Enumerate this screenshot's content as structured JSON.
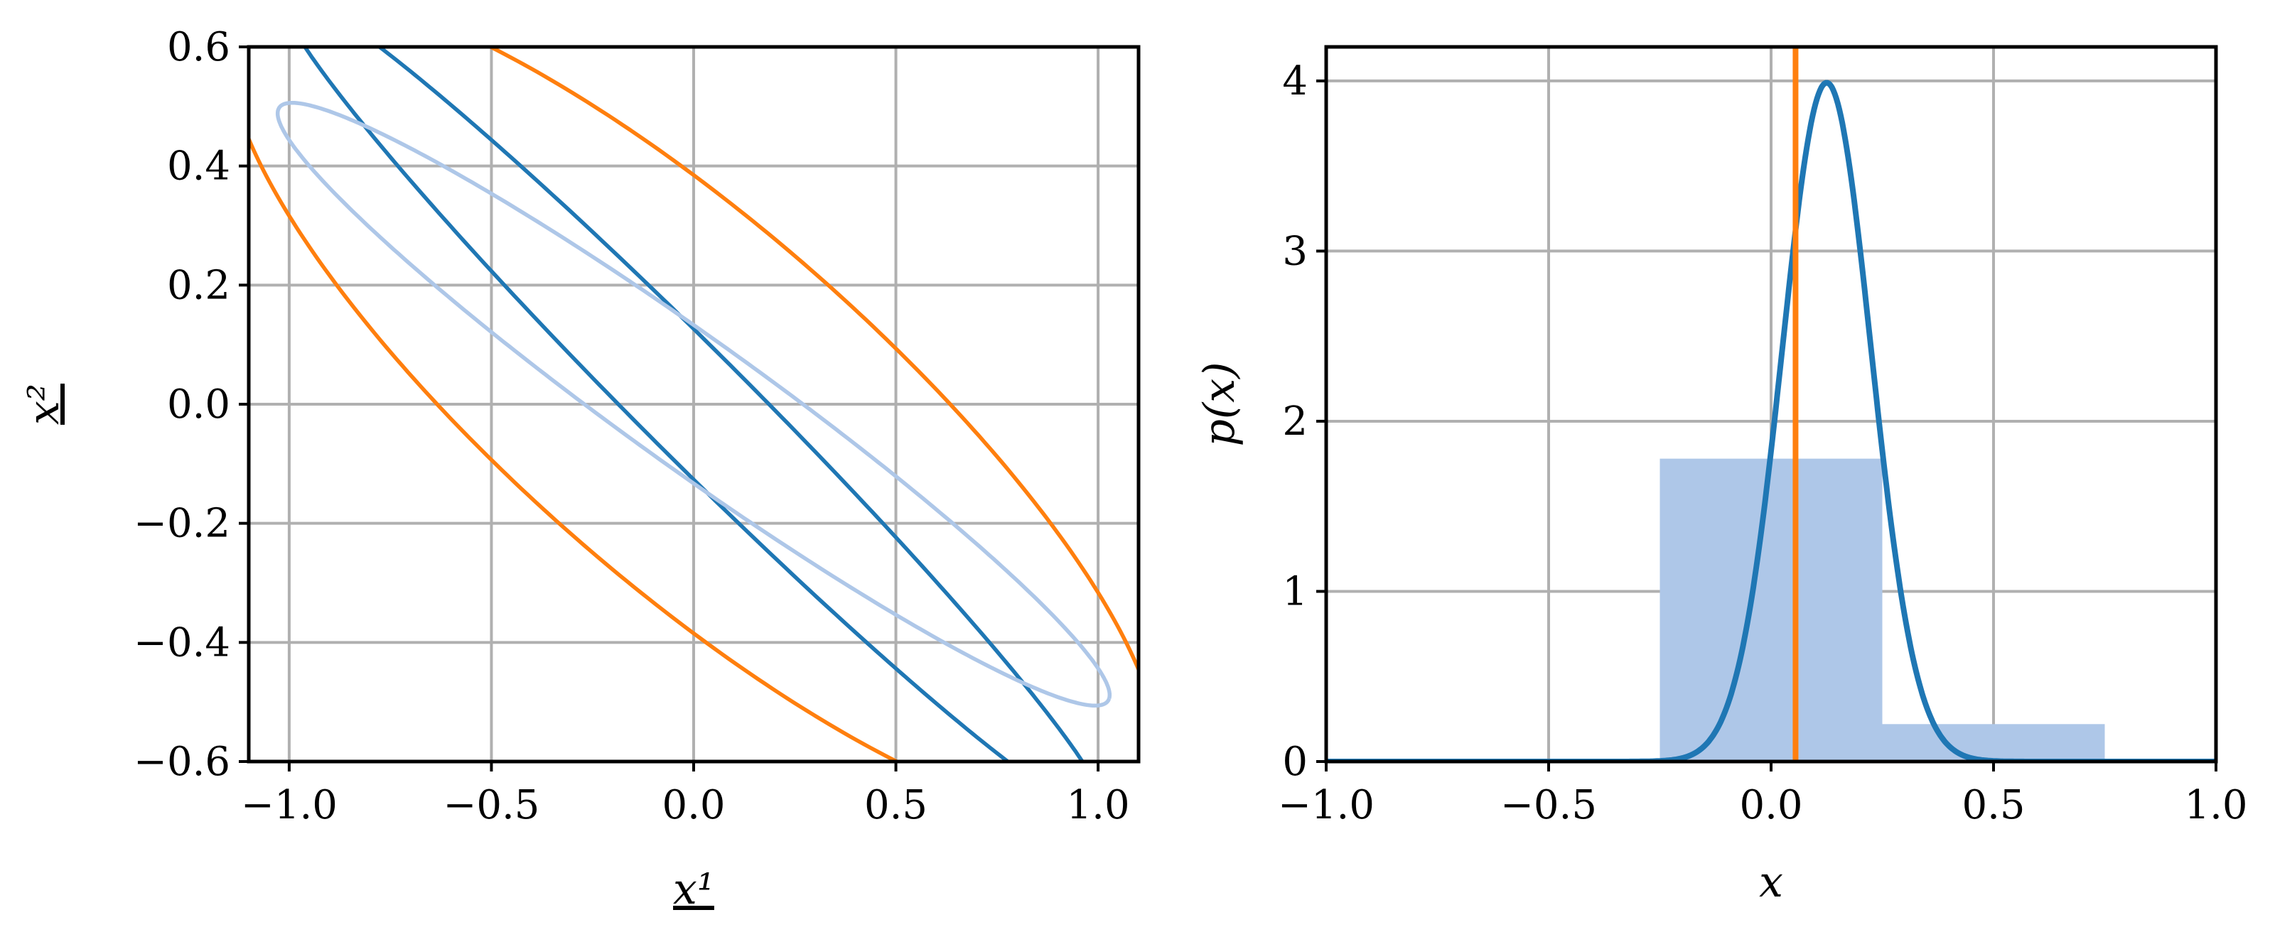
{
  "chart_data": [
    {
      "type": "line",
      "title": "",
      "xlabel": "x¹",
      "ylabel": "x²",
      "xlim": [
        -1.1,
        1.1
      ],
      "ylim": [
        -0.6,
        0.6
      ],
      "xticks": [
        -1.0,
        -0.5,
        0.0,
        0.5,
        1.0
      ],
      "xtick_labels": [
        "−1.0",
        "−0.5",
        "0.0",
        "0.5",
        "1.0"
      ],
      "yticks": [
        -0.6,
        -0.4,
        -0.2,
        0.0,
        0.2,
        0.4,
        0.6
      ],
      "ytick_labels": [
        "−0.6",
        "−0.4",
        "−0.2",
        "0.0",
        "0.2",
        "0.4",
        "0.6"
      ],
      "grid": true,
      "series": [
        {
          "color": "#ff7f0e",
          "shape": "ellipse",
          "center": [
            0.0,
            0.0
          ],
          "semi_major": 1.3,
          "semi_minor": 0.34,
          "angle_deg": -29
        },
        {
          "color": "#1f77b4",
          "shape": "ellipse",
          "center": [
            0.0,
            0.0
          ],
          "semi_major": 1.225,
          "semi_minor": 0.105,
          "angle_deg": -34
        },
        {
          "color": "#aec7e8",
          "shape": "ellipse",
          "center": [
            0.0,
            0.0
          ],
          "semi_major": 1.14,
          "semi_minor": 0.12,
          "angle_deg": -25.7
        }
      ]
    },
    {
      "type": "line",
      "title": "",
      "xlabel": "x",
      "ylabel": "p(x)",
      "xlim": [
        -1.0,
        1.0
      ],
      "ylim": [
        0,
        4.2
      ],
      "xticks": [
        -1.0,
        -0.5,
        0.0,
        0.5,
        1.0
      ],
      "xtick_labels": [
        "−1.0",
        "−0.5",
        "0.0",
        "0.5",
        "1.0"
      ],
      "yticks": [
        0,
        1,
        2,
        3,
        4
      ],
      "ytick_labels": [
        "0",
        "1",
        "2",
        "3",
        "4"
      ],
      "grid": true,
      "histogram": {
        "color": "#aec7e8",
        "bins": [
          {
            "x0": -0.25,
            "x1": 0.25,
            "height": 1.78
          },
          {
            "x0": 0.25,
            "x1": 0.75,
            "height": 0.22
          }
        ]
      },
      "vline": {
        "x": 0.055,
        "color": "#ff7f0e"
      },
      "curve": {
        "color": "#1f77b4",
        "distribution": "normal",
        "mean": 0.125,
        "std": 0.1,
        "x_range": [
          -1.0,
          1.0
        ]
      }
    }
  ]
}
